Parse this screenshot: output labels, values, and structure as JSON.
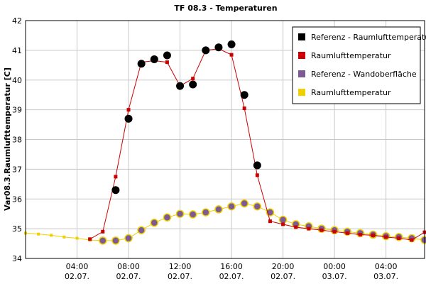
{
  "chart_data": {
    "type": "line",
    "title": "TF 08.3 - Temperaturen",
    "ylabel": "Var08.3.Raumlufttemperatur [C]",
    "xlabel": "",
    "xlim": [
      0,
      31
    ],
    "ylim": [
      34,
      42
    ],
    "yticks": [
      34,
      35,
      36,
      37,
      38,
      39,
      40,
      41,
      42
    ],
    "xticks": [
      {
        "x": 4,
        "line1": "04:00",
        "line2": "02.07."
      },
      {
        "x": 8,
        "line1": "08:00",
        "line2": "02.07."
      },
      {
        "x": 12,
        "line1": "12:00",
        "line2": "02.07."
      },
      {
        "x": 16,
        "line1": "16:00",
        "line2": "02.07."
      },
      {
        "x": 20,
        "line1": "20:00",
        "line2": "02.07."
      },
      {
        "x": 24,
        "line1": "00:00",
        "line2": "03.07."
      },
      {
        "x": 28,
        "line1": "04:00",
        "line2": "03.07."
      }
    ],
    "grid": true,
    "legend_position": "top-right",
    "series": [
      {
        "name": "Referenz - Raumlufttemperatur",
        "color": "#000000",
        "marker": "circle",
        "line": false,
        "x": [
          7,
          8,
          9,
          10,
          11,
          12,
          13,
          14,
          15,
          16,
          17,
          18
        ],
        "y": [
          36.3,
          38.7,
          40.55,
          40.7,
          40.83,
          39.8,
          39.85,
          41.0,
          41.1,
          41.2,
          39.5,
          37.13
        ]
      },
      {
        "name": "Raumlufttemperatur",
        "color": "#cc0000",
        "marker": "square",
        "line": true,
        "x": [
          5,
          6,
          7,
          8,
          9,
          10,
          11,
          12,
          13,
          14,
          15,
          16,
          17,
          18,
          19,
          20,
          21,
          22,
          23,
          24,
          25,
          26,
          27,
          28,
          29,
          30,
          31
        ],
        "y": [
          34.65,
          34.9,
          36.75,
          39.0,
          40.6,
          40.65,
          40.6,
          39.8,
          40.05,
          41.0,
          41.05,
          40.85,
          39.05,
          36.8,
          35.25,
          35.15,
          35.05,
          35.0,
          34.95,
          34.9,
          34.85,
          34.8,
          34.78,
          34.72,
          34.68,
          34.62,
          34.88
        ]
      },
      {
        "name": "Referenz - Wandoberfläche",
        "color": "#7b5a96",
        "marker": "circle",
        "line": false,
        "x": [
          6,
          7,
          8,
          9,
          10,
          11,
          12,
          13,
          14,
          15,
          16,
          17,
          18,
          19,
          20,
          21,
          22,
          23,
          24,
          25,
          26,
          27,
          28,
          29,
          30,
          31
        ],
        "y": [
          34.6,
          34.6,
          34.68,
          34.95,
          35.2,
          35.38,
          35.5,
          35.48,
          35.55,
          35.65,
          35.75,
          35.85,
          35.75,
          35.55,
          35.3,
          35.15,
          35.08,
          35.0,
          34.95,
          34.9,
          34.85,
          34.8,
          34.75,
          34.72,
          34.68,
          34.62
        ]
      },
      {
        "name": "Raumlufttemperatur",
        "color": "#f0d000",
        "marker": "square",
        "line": true,
        "x": [
          0,
          1,
          2,
          3,
          4,
          5,
          6,
          7,
          8,
          9,
          10,
          11,
          12,
          13,
          14,
          15,
          16,
          17,
          18,
          19,
          20,
          21,
          22,
          23,
          24,
          25,
          26,
          27,
          28,
          29,
          30,
          31
        ],
        "y": [
          34.85,
          34.82,
          34.78,
          34.72,
          34.68,
          34.62,
          34.6,
          34.6,
          34.68,
          34.95,
          35.2,
          35.38,
          35.5,
          35.48,
          35.55,
          35.65,
          35.75,
          35.85,
          35.75,
          35.55,
          35.3,
          35.15,
          35.08,
          35.0,
          34.95,
          34.9,
          34.85,
          34.8,
          34.75,
          34.72,
          34.68,
          34.62
        ]
      }
    ]
  }
}
